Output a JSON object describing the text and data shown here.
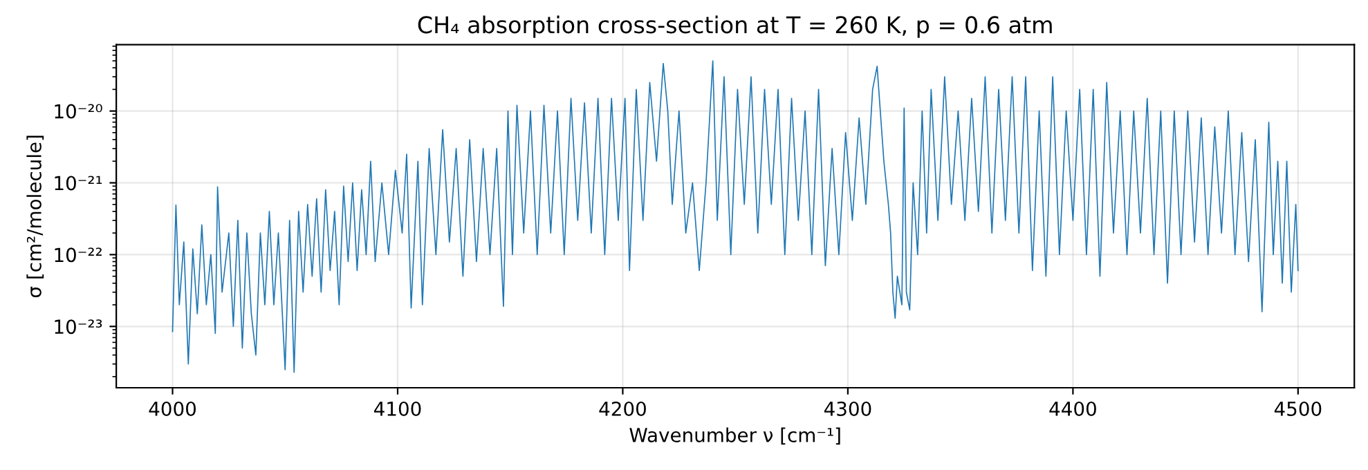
{
  "chart_data": {
    "type": "line",
    "title": "CH₄ absorption cross-section at T = 260 K, p = 0.6 atm",
    "xlabel": "Wavenumber ν [cm⁻¹]",
    "ylabel": "σ [cm²/molecule]",
    "log": "y",
    "grid": true,
    "xlim": [
      3975,
      4525
    ],
    "xticks": [
      4000,
      4100,
      4200,
      4300,
      4400,
      4500
    ],
    "ylim": [
      1.4e-24,
      8.4e-20
    ],
    "yticks": [
      {
        "value": 1e-23,
        "label": "10⁻²³"
      },
      {
        "value": 1e-22,
        "label": "10⁻²²"
      },
      {
        "value": 1e-21,
        "label": "10⁻²¹"
      },
      {
        "value": 1e-20,
        "label": "10⁻²⁰"
      }
    ],
    "marker": "none",
    "line_style": "solid",
    "x": [
      4000,
      4001.5,
      4003,
      4005,
      4007,
      4009,
      4011,
      4013,
      4015,
      4017,
      4019,
      4020,
      4022,
      4025,
      4027,
      4029,
      4031,
      4033,
      4035,
      4037,
      4039,
      4041,
      4043,
      4045,
      4047,
      4050,
      4052,
      4054,
      4056,
      4058,
      4060,
      4062,
      4064,
      4066,
      4068,
      4070,
      4072,
      4074,
      4076,
      4078,
      4080,
      4082,
      4084,
      4086,
      4088,
      4090,
      4093,
      4096,
      4099,
      4102,
      4104,
      4106,
      4109,
      4111,
      4114,
      4117,
      4120,
      4123,
      4126,
      4129,
      4132,
      4135,
      4138,
      4141,
      4144,
      4147,
      4149,
      4151,
      4153,
      4156,
      4159,
      4162,
      4165,
      4168,
      4171,
      4174,
      4177,
      4180,
      4183,
      4186,
      4189,
      4192,
      4195,
      4198,
      4201,
      4203,
      4206,
      4209,
      4212,
      4215,
      4218,
      4220,
      4222,
      4225,
      4228,
      4231,
      4234,
      4237,
      4240,
      4242,
      4245,
      4248,
      4251,
      4254,
      4257,
      4260,
      4263,
      4266,
      4269,
      4272,
      4275,
      4278,
      4281,
      4284,
      4287,
      4290,
      4293,
      4296,
      4299,
      4302,
      4305,
      4308,
      4311,
      4313,
      4316,
      4318,
      4319,
      4320,
      4321,
      4322,
      4324,
      4325,
      4326,
      4327.5,
      4329,
      4331,
      4333,
      4335,
      4337,
      4340,
      4343,
      4346,
      4349,
      4352,
      4355,
      4358,
      4361,
      4364,
      4367,
      4370,
      4373,
      4376,
      4379,
      4382,
      4385,
      4388,
      4391,
      4394,
      4397,
      4400,
      4403,
      4406,
      4409,
      4412,
      4415,
      4418,
      4421,
      4424,
      4427,
      4430,
      4433,
      4436,
      4439,
      4442,
      4445,
      4448,
      4451,
      4454,
      4457,
      4460,
      4463,
      4466,
      4469,
      4472,
      4475,
      4478,
      4481,
      4484,
      4487,
      4489,
      4491,
      4493,
      4495,
      4497,
      4499,
      4500
    ],
    "series": [
      {
        "color": "#1f77b4",
        "values": [
          8.5e-24,
          4.9e-22,
          2e-23,
          1.5e-22,
          3e-24,
          1.2e-22,
          1.5e-23,
          2.6e-22,
          2e-23,
          1e-22,
          8e-24,
          8.8e-22,
          3e-23,
          2e-22,
          1e-23,
          3e-22,
          5e-24,
          2e-22,
          1.5e-23,
          4e-24,
          2e-22,
          2e-23,
          4e-22,
          2e-23,
          2e-22,
          2.5e-24,
          3e-22,
          2.3e-24,
          4e-22,
          3e-23,
          5e-22,
          5e-23,
          6e-22,
          3e-23,
          8e-22,
          6e-23,
          4e-22,
          2e-23,
          9e-22,
          8e-23,
          1e-21,
          6e-23,
          8e-22,
          1e-22,
          2e-21,
          8e-23,
          1e-21,
          1e-22,
          1.5e-21,
          2e-22,
          2.5e-21,
          1.8e-23,
          2e-21,
          2e-23,
          3e-21,
          1e-22,
          5.5e-21,
          1.5e-22,
          3e-21,
          5e-23,
          4e-21,
          8e-23,
          3e-21,
          1e-22,
          3e-21,
          1.9e-23,
          1e-20,
          1e-22,
          1.2e-20,
          2e-22,
          1e-20,
          1e-22,
          1.2e-20,
          2e-22,
          1e-20,
          1e-22,
          1.5e-20,
          3e-22,
          1.3e-20,
          2e-22,
          1.5e-20,
          1e-22,
          1.5e-20,
          3e-22,
          1.5e-20,
          6e-23,
          2e-20,
          3e-22,
          2.5e-20,
          2e-21,
          4.6e-20,
          1e-20,
          5e-22,
          1e-20,
          2e-22,
          1e-21,
          6e-23,
          1e-21,
          5e-20,
          3e-22,
          3e-20,
          1e-22,
          2e-20,
          5e-22,
          3e-20,
          2e-22,
          2e-20,
          5e-22,
          2e-20,
          1e-22,
          1.5e-20,
          3e-22,
          1e-20,
          1e-22,
          2e-20,
          7e-23,
          3e-21,
          1e-22,
          5e-21,
          3e-22,
          8e-21,
          5e-22,
          2e-20,
          4.2e-20,
          2e-21,
          5e-22,
          2e-22,
          3e-23,
          1.3e-23,
          5e-23,
          2e-23,
          1.1e-20,
          3e-23,
          1.7e-23,
          1e-21,
          1e-22,
          1e-20,
          2e-22,
          2e-20,
          3e-22,
          3e-20,
          5e-22,
          1e-20,
          3e-22,
          1.5e-20,
          4e-22,
          3e-20,
          2e-22,
          2e-20,
          3e-22,
          3e-20,
          2e-22,
          3e-20,
          6e-23,
          1e-20,
          5e-23,
          3e-20,
          1e-22,
          1e-20,
          3e-22,
          2e-20,
          1e-22,
          2e-20,
          5e-23,
          2.5e-20,
          2e-22,
          1e-20,
          1e-22,
          1e-20,
          2e-22,
          1.5e-20,
          1e-22,
          1e-20,
          4e-23,
          1e-20,
          1e-22,
          1e-20,
          1.5e-22,
          8e-21,
          1e-22,
          6e-21,
          2e-22,
          1e-20,
          1e-22,
          5e-21,
          8e-23,
          4e-21,
          1.6e-23,
          7e-21,
          1e-22,
          2e-21,
          4e-23,
          2e-21,
          3e-23,
          5e-22,
          6e-23
        ]
      }
    ]
  }
}
